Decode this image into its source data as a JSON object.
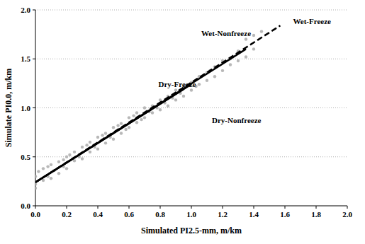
{
  "chart_data": {
    "type": "scatter",
    "x_label": "Simulated PI2.5-mm, m/km",
    "y_label": "Simulate PI0.0, m/km",
    "xlim": [
      0,
      2
    ],
    "ylim": [
      0,
      2
    ],
    "xticks": [
      {
        "value": 0,
        "label": "0.0"
      },
      0.2,
      0.4,
      0.6,
      0.8,
      {
        "value": 1,
        "label": "1.0"
      },
      1.2,
      1.4,
      1.6,
      1.8,
      {
        "value": 2,
        "label": "2.0"
      }
    ],
    "yticks": [
      {
        "value": 0,
        "label": "0.0"
      },
      0.5,
      {
        "value": 1,
        "label": "1.0"
      },
      1.5,
      {
        "value": 2,
        "label": "2.0"
      }
    ],
    "grid": true,
    "series": [
      {
        "type": "scatter",
        "color": "#b8b8b8",
        "marker": "circle",
        "x": [
          0,
          0,
          0,
          0.02,
          0.05,
          0.05,
          0.08,
          0.08,
          0.1,
          0.1,
          0.12,
          0.15,
          0.15,
          0.18,
          0.18,
          0.2,
          0.2,
          0.22,
          0.25,
          0.25,
          0.28,
          0.3,
          0.3,
          0.33,
          0.35,
          0.35,
          0.38,
          0.4,
          0.4,
          0.43,
          0.45,
          0.45,
          0.48,
          0.5,
          0.5,
          0.53,
          0.55,
          0.55,
          0.58,
          0.6,
          0.6,
          0.63,
          0.65,
          0.65,
          0.68,
          0.7,
          0.7,
          0.73,
          0.75,
          0.75,
          0.78,
          0.8,
          0.8,
          0.83,
          0.85,
          0.85,
          0.88,
          0.9,
          0.9,
          0.93,
          0.95,
          0.95,
          1,
          1,
          1.03,
          1.05,
          1.05,
          1.1,
          1.1,
          1.12,
          1.15,
          1.15,
          1.2,
          1.2,
          1.25,
          1.25,
          1.3,
          1.3,
          1.35,
          1.35,
          1.4,
          1.4,
          1.45
        ],
        "values": [
          0.18,
          0.3,
          0.22,
          0.35,
          0.26,
          0.38,
          0.3,
          0.4,
          0.28,
          0.42,
          0.36,
          0.33,
          0.45,
          0.47,
          0.4,
          0.38,
          0.5,
          0.52,
          0.46,
          0.55,
          0.5,
          0.48,
          0.6,
          0.62,
          0.55,
          0.65,
          0.6,
          0.58,
          0.7,
          0.72,
          0.64,
          0.74,
          0.7,
          0.68,
          0.8,
          0.82,
          0.74,
          0.84,
          0.78,
          0.8,
          0.9,
          0.92,
          0.85,
          0.95,
          0.88,
          0.9,
          1,
          0.96,
          0.95,
          1.02,
          1,
          0.98,
          1.08,
          1.05,
          1.02,
          1.12,
          1.1,
          1.08,
          1.18,
          1.15,
          1.12,
          1.22,
          1.18,
          1.26,
          1.22,
          1.24,
          1.32,
          1.28,
          1.36,
          1.38,
          1.32,
          1.42,
          1.38,
          1.48,
          1.44,
          1.5,
          1.48,
          1.58,
          1.52,
          1.7,
          1.74,
          1.6,
          1.78
        ]
      },
      {
        "name": "Dry-Nonfreeze",
        "type": "line",
        "color": "#000000",
        "line_style": "solid",
        "x": [
          0,
          0.95
        ],
        "values": [
          0.24,
          1.19
        ]
      },
      {
        "name": "Dry-Freeze",
        "type": "line",
        "color": "#000000",
        "line_style": "solid",
        "x": [
          0,
          1.0
        ],
        "values": [
          0.24,
          1.24
        ]
      },
      {
        "name": "Wet-Nonfreeze",
        "type": "line",
        "color": "#000000",
        "line_style": "solid",
        "x": [
          0,
          1.35
        ],
        "values": [
          0.24,
          1.6
        ]
      },
      {
        "name": "Wet-Freeze",
        "type": "line",
        "color": "#000000",
        "line_style": "dashed",
        "x": [
          0,
          1.57
        ],
        "values": [
          0.24,
          1.84
        ]
      }
    ]
  }
}
